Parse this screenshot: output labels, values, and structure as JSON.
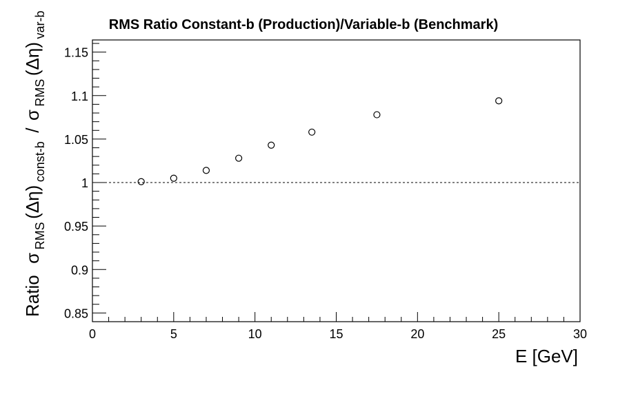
{
  "chart_data": {
    "type": "scatter",
    "title": "RMS Ratio Constant-b (Production)/Variable-b (Benchmark)",
    "xlabel": "E  [GeV]",
    "ylabel": {
      "prefix": "Ratio",
      "sigma": "σ",
      "rms": "RMS",
      "delta_eta": "(Δη)",
      "const_sub": "const-b",
      "slash": "/",
      "var_sub": "var-b"
    },
    "xlim": [
      0,
      30
    ],
    "ylim": [
      0.84,
      1.164
    ],
    "x_ticks": [
      0,
      5,
      10,
      15,
      20,
      25,
      30
    ],
    "x_tick_labels": [
      "0",
      "5",
      "10",
      "15",
      "20",
      "25",
      "30"
    ],
    "y_ticks": [
      0.85,
      0.9,
      0.95,
      1,
      1.05,
      1.1,
      1.15
    ],
    "y_tick_labels": [
      "0.85",
      "0.9",
      "0.95",
      "1",
      "1.05",
      "1.1",
      "1.15"
    ],
    "reference_line": 1.0,
    "grid": false,
    "legend": "none",
    "x": [
      3,
      5,
      7,
      9,
      11,
      13.5,
      17.5,
      25
    ],
    "y": [
      1.001,
      1.005,
      1.014,
      1.028,
      1.043,
      1.058,
      1.078,
      1.094
    ]
  }
}
